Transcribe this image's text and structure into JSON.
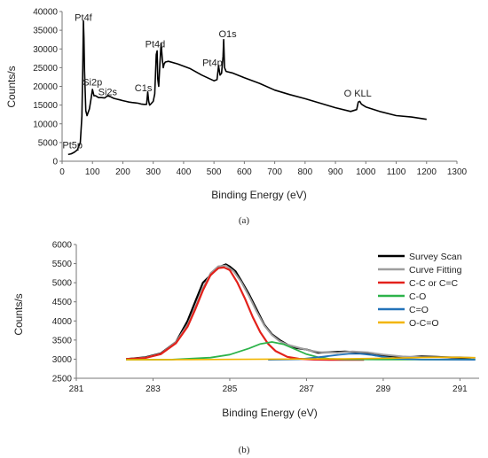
{
  "chart_data": [
    {
      "panel_label": "(a)",
      "type": "line",
      "xlabel": "Binding Energy (eV)",
      "ylabel": "Counts/s",
      "xlim": [
        0,
        1300
      ],
      "ylim": [
        0,
        40000
      ],
      "xticks": [
        "0",
        "100",
        "200",
        "300",
        "400",
        "500",
        "600",
        "700",
        "800",
        "900",
        "1000",
        "1100",
        "1200",
        "1300"
      ],
      "yticks": [
        "0",
        "5000",
        "10000",
        "15000",
        "20000",
        "25000",
        "30000",
        "35000",
        "40000"
      ],
      "series": [
        {
          "color": "#000000",
          "x": [
            20,
            30,
            40,
            50,
            60,
            65,
            68,
            70,
            72,
            74,
            78,
            82,
            90,
            95,
            100,
            105,
            110,
            120,
            130,
            140,
            150,
            160,
            170,
            180,
            190,
            200,
            210,
            220,
            230,
            240,
            250,
            260,
            270,
            278,
            282,
            285,
            288,
            292,
            300,
            305,
            310,
            313,
            315,
            318,
            322,
            326,
            330,
            333,
            336,
            340,
            350,
            380,
            420,
            460,
            500,
            510,
            515,
            520,
            525,
            530,
            532,
            535,
            540,
            560,
            600,
            650,
            700,
            750,
            800,
            850,
            900,
            950,
            970,
            975,
            980,
            985,
            990,
            1000,
            1050,
            1100,
            1150,
            1200
          ],
          "y": [
            1800,
            2000,
            2400,
            3000,
            5000,
            12000,
            25000,
            37500,
            33000,
            24000,
            13500,
            12200,
            14000,
            16500,
            19200,
            17500,
            17500,
            17000,
            17000,
            16900,
            17500,
            17200,
            16800,
            16600,
            16400,
            16200,
            16000,
            15800,
            15700,
            15600,
            15500,
            15300,
            15200,
            15200,
            18500,
            16000,
            15000,
            15300,
            16000,
            18000,
            28500,
            29500,
            22000,
            20000,
            26000,
            31500,
            27000,
            25000,
            26000,
            26500,
            26700,
            26000,
            24800,
            23000,
            21500,
            21800,
            25500,
            23000,
            23500,
            28000,
            32500,
            25000,
            24000,
            23600,
            22300,
            20800,
            19000,
            17800,
            16700,
            15500,
            14300,
            13300,
            13800,
            15800,
            16000,
            15300,
            15000,
            14500,
            13200,
            12200,
            11800,
            11200
          ]
        }
      ],
      "annotations": [
        {
          "text": "Pt4f",
          "x": 70,
          "y": 37000
        },
        {
          "text": "Si2p",
          "x": 100,
          "y": 19500
        },
        {
          "text": "Si2s",
          "x": 150,
          "y": 17200
        },
        {
          "text": "C1s",
          "x": 285,
          "y": 18200
        },
        {
          "text": "Pt4d",
          "x": 330,
          "y": 30000
        },
        {
          "text": "Pt4p",
          "x": 530,
          "y": 24500
        },
        {
          "text": "O1s",
          "x": 545,
          "y": 32700
        },
        {
          "text": "O KLL",
          "x": 985,
          "y": 16300
        },
        {
          "text": "Pt5p",
          "x": 40,
          "y": 1500
        }
      ]
    },
    {
      "panel_label": "(b)",
      "type": "line",
      "xlabel": "Binding Energy (eV)",
      "ylabel": "Counts/s",
      "xlim": [
        281,
        291.5
      ],
      "ylim": [
        2500,
        6000
      ],
      "xticks": [
        "281",
        "283",
        "285",
        "287",
        "289",
        "291"
      ],
      "yticks": [
        "2500",
        "3000",
        "3500",
        "4000",
        "4500",
        "5000",
        "5500",
        "6000"
      ],
      "legend_position": "top-right",
      "series": [
        {
          "name": "Survey Scan",
          "color": "#000000",
          "x": [
            282.3,
            282.8,
            283.2,
            283.6,
            283.9,
            284.1,
            284.3,
            284.45,
            284.6,
            284.75,
            284.9,
            285.0,
            285.15,
            285.3,
            285.5,
            285.7,
            285.9,
            286.1,
            286.3,
            286.5,
            286.7,
            287.0,
            287.3,
            287.6,
            288.0,
            288.4,
            288.8,
            289.2,
            289.6,
            290.0,
            290.4,
            290.8,
            291.3
          ],
          "y": [
            3000,
            3050,
            3150,
            3450,
            4000,
            4500,
            5000,
            5150,
            5300,
            5420,
            5480,
            5420,
            5300,
            5050,
            4700,
            4300,
            3900,
            3650,
            3500,
            3380,
            3300,
            3250,
            3170,
            3180,
            3200,
            3180,
            3100,
            3080,
            3050,
            3070,
            3060,
            3040,
            3030
          ]
        },
        {
          "name": "Curve Fitting",
          "color": "#9e9e9e",
          "x": [
            282.3,
            282.8,
            283.2,
            283.6,
            283.9,
            284.1,
            284.3,
            284.5,
            284.7,
            284.9,
            285.1,
            285.3,
            285.5,
            285.7,
            285.9,
            286.1,
            286.3,
            286.5,
            286.8,
            287.1,
            287.4,
            287.8,
            288.2,
            288.6,
            289.0,
            289.5,
            290.0,
            290.5,
            291.0,
            291.4
          ],
          "y": [
            3000,
            3040,
            3140,
            3450,
            3900,
            4350,
            4850,
            5250,
            5430,
            5450,
            5300,
            5020,
            4650,
            4250,
            3880,
            3630,
            3470,
            3380,
            3300,
            3220,
            3180,
            3170,
            3200,
            3180,
            3120,
            3070,
            3050,
            3050,
            3050,
            3030
          ]
        },
        {
          "name": "C-C or C=C",
          "color": "#e3211b",
          "x": [
            282.3,
            282.8,
            283.2,
            283.6,
            283.9,
            284.1,
            284.3,
            284.5,
            284.7,
            284.85,
            285.0,
            285.2,
            285.4,
            285.6,
            285.8,
            286.0,
            286.2,
            286.5,
            286.8,
            287.2,
            287.6,
            288.0,
            288.5
          ],
          "y": [
            3000,
            3030,
            3130,
            3420,
            3850,
            4300,
            4800,
            5200,
            5380,
            5400,
            5330,
            5000,
            4580,
            4100,
            3700,
            3400,
            3210,
            3060,
            3010,
            2990,
            2985,
            2985,
            2985
          ]
        },
        {
          "name": "C-O",
          "color": "#2db34a",
          "x": [
            282.3,
            283.5,
            284.5,
            285.0,
            285.5,
            285.8,
            286.1,
            286.4,
            286.7,
            287.0,
            287.3,
            287.6,
            288.0,
            289.0,
            290.0,
            291.4
          ],
          "y": [
            2985,
            2990,
            3040,
            3120,
            3280,
            3400,
            3450,
            3390,
            3260,
            3130,
            3050,
            3010,
            2995,
            2990,
            2990,
            2990
          ]
        },
        {
          "name": "C=O",
          "color": "#2373b9",
          "x": [
            286.0,
            286.8,
            287.4,
            287.8,
            288.1,
            288.4,
            288.7,
            289.0,
            289.4,
            290.0,
            291.4
          ],
          "y": [
            2985,
            2995,
            3060,
            3110,
            3140,
            3140,
            3110,
            3060,
            3010,
            2990,
            2985
          ]
        },
        {
          "name": "O-C=O",
          "color": "#f2b500",
          "x": [
            282.3,
            284.0,
            286.0,
            288.0,
            289.5,
            290.3,
            290.8,
            291.4
          ],
          "y": [
            2985,
            2990,
            3000,
            3010,
            3030,
            3050,
            3050,
            3040
          ]
        }
      ]
    }
  ]
}
